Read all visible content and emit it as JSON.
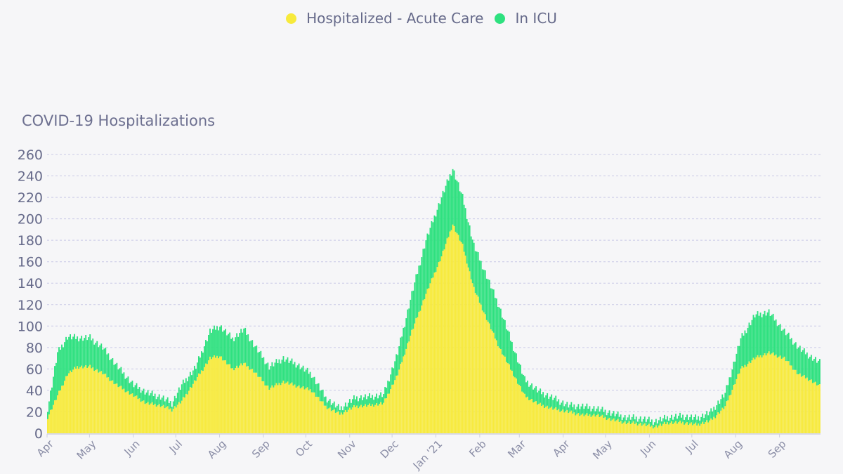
{
  "legend": {
    "items": [
      {
        "label": "Hospitalized - Acute Care",
        "color": "#f7ea3c"
      },
      {
        "label": "In ICU",
        "color": "#2ee17f"
      }
    ]
  },
  "chart_data": {
    "type": "bar",
    "stacked": true,
    "title": "COVID-19 Hospitalizations",
    "xlabel": "",
    "ylabel": "",
    "ylim": [
      0,
      260
    ],
    "yticks": [
      0,
      20,
      40,
      60,
      80,
      100,
      120,
      140,
      160,
      180,
      200,
      220,
      240,
      260
    ],
    "grid": true,
    "legend_position": "top-center",
    "x_tick_labels": [
      "Apr",
      "May",
      "Jun",
      "Jul",
      "Aug",
      "Sep",
      "Oct",
      "Nov",
      "Dec",
      "Jan '21",
      "Feb",
      "Mar",
      "Apr",
      "May",
      "Jun",
      "Jul",
      "Aug",
      "Sep"
    ],
    "x_start": "2020-04-01",
    "x_end": "2021-09-30",
    "series": [
      {
        "name": "Hospitalized - Acute Care",
        "color": "#f7ea3c",
        "points": [
          [
            "2020-04-01",
            15
          ],
          [
            "2020-04-08",
            35
          ],
          [
            "2020-04-15",
            55
          ],
          [
            "2020-04-22",
            62
          ],
          [
            "2020-05-01",
            62
          ],
          [
            "2020-05-10",
            56
          ],
          [
            "2020-05-20",
            45
          ],
          [
            "2020-06-01",
            35
          ],
          [
            "2020-06-10",
            28
          ],
          [
            "2020-06-20",
            26
          ],
          [
            "2020-06-28",
            22
          ],
          [
            "2020-07-05",
            30
          ],
          [
            "2020-07-15",
            50
          ],
          [
            "2020-07-25",
            70
          ],
          [
            "2020-08-01",
            72
          ],
          [
            "2020-08-10",
            60
          ],
          [
            "2020-08-18",
            65
          ],
          [
            "2020-08-25",
            58
          ],
          [
            "2020-09-05",
            42
          ],
          [
            "2020-09-15",
            48
          ],
          [
            "2020-09-25",
            44
          ],
          [
            "2020-10-05",
            40
          ],
          [
            "2020-10-15",
            25
          ],
          [
            "2020-10-25",
            18
          ],
          [
            "2020-11-05",
            25
          ],
          [
            "2020-11-15",
            26
          ],
          [
            "2020-11-25",
            28
          ],
          [
            "2020-12-05",
            55
          ],
          [
            "2020-12-15",
            95
          ],
          [
            "2020-12-25",
            130
          ],
          [
            "2021-01-05",
            165
          ],
          [
            "2021-01-13",
            195
          ],
          [
            "2021-01-20",
            175
          ],
          [
            "2021-01-28",
            135
          ],
          [
            "2021-02-05",
            110
          ],
          [
            "2021-02-15",
            80
          ],
          [
            "2021-02-25",
            55
          ],
          [
            "2021-03-05",
            35
          ],
          [
            "2021-03-15",
            27
          ],
          [
            "2021-03-25",
            23
          ],
          [
            "2021-04-05",
            20
          ],
          [
            "2021-04-15",
            17
          ],
          [
            "2021-04-25",
            17
          ],
          [
            "2021-05-05",
            13
          ],
          [
            "2021-05-15",
            10
          ],
          [
            "2021-05-25",
            9
          ],
          [
            "2021-06-05",
            6
          ],
          [
            "2021-06-15",
            10
          ],
          [
            "2021-06-25",
            10
          ],
          [
            "2021-07-05",
            8
          ],
          [
            "2021-07-15",
            12
          ],
          [
            "2021-07-25",
            25
          ],
          [
            "2021-08-05",
            60
          ],
          [
            "2021-08-15",
            70
          ],
          [
            "2021-08-25",
            75
          ],
          [
            "2021-09-05",
            70
          ],
          [
            "2021-09-15",
            55
          ],
          [
            "2021-09-23",
            50
          ],
          [
            "2021-09-30",
            44
          ]
        ]
      },
      {
        "name": "In ICU",
        "color": "#2ee17f",
        "points": [
          [
            "2020-04-01",
            8
          ],
          [
            "2020-04-08",
            40
          ],
          [
            "2020-04-15",
            35
          ],
          [
            "2020-04-22",
            27
          ],
          [
            "2020-05-01",
            27
          ],
          [
            "2020-05-10",
            24
          ],
          [
            "2020-05-20",
            18
          ],
          [
            "2020-06-01",
            10
          ],
          [
            "2020-06-10",
            10
          ],
          [
            "2020-06-20",
            8
          ],
          [
            "2020-06-28",
            6
          ],
          [
            "2020-07-05",
            15
          ],
          [
            "2020-07-15",
            12
          ],
          [
            "2020-07-25",
            25
          ],
          [
            "2020-08-01",
            28
          ],
          [
            "2020-08-10",
            28
          ],
          [
            "2020-08-18",
            32
          ],
          [
            "2020-08-25",
            25
          ],
          [
            "2020-09-05",
            20
          ],
          [
            "2020-09-15",
            22
          ],
          [
            "2020-09-25",
            20
          ],
          [
            "2020-10-05",
            15
          ],
          [
            "2020-10-15",
            8
          ],
          [
            "2020-10-25",
            5
          ],
          [
            "2020-11-05",
            8
          ],
          [
            "2020-11-15",
            8
          ],
          [
            "2020-11-25",
            8
          ],
          [
            "2020-12-05",
            20
          ],
          [
            "2020-12-15",
            35
          ],
          [
            "2020-12-25",
            50
          ],
          [
            "2021-01-05",
            55
          ],
          [
            "2021-01-13",
            52
          ],
          [
            "2021-01-20",
            45
          ],
          [
            "2021-01-28",
            40
          ],
          [
            "2021-02-05",
            40
          ],
          [
            "2021-02-15",
            38
          ],
          [
            "2021-02-25",
            25
          ],
          [
            "2021-03-05",
            15
          ],
          [
            "2021-03-15",
            12
          ],
          [
            "2021-03-25",
            10
          ],
          [
            "2021-04-05",
            6
          ],
          [
            "2021-04-15",
            8
          ],
          [
            "2021-04-25",
            6
          ],
          [
            "2021-05-05",
            6
          ],
          [
            "2021-05-15",
            5
          ],
          [
            "2021-05-25",
            5
          ],
          [
            "2021-06-05",
            5
          ],
          [
            "2021-06-15",
            5
          ],
          [
            "2021-06-25",
            6
          ],
          [
            "2021-07-05",
            6
          ],
          [
            "2021-07-15",
            8
          ],
          [
            "2021-07-25",
            12
          ],
          [
            "2021-08-05",
            28
          ],
          [
            "2021-08-15",
            40
          ],
          [
            "2021-08-25",
            38
          ],
          [
            "2021-09-05",
            25
          ],
          [
            "2021-09-15",
            25
          ],
          [
            "2021-09-23",
            22
          ],
          [
            "2021-09-30",
            22
          ]
        ]
      }
    ]
  }
}
